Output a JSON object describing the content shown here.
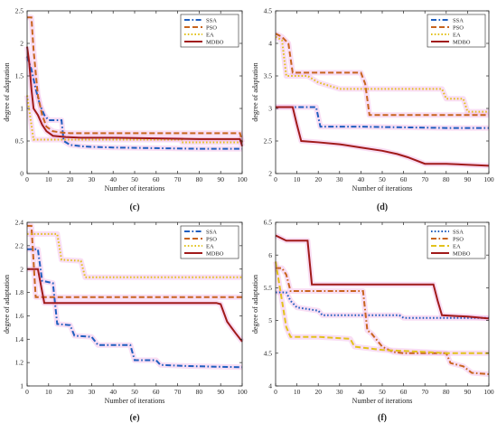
{
  "chart_data": [
    {
      "type": "line",
      "panel_label": "(c)",
      "xlabel": "Number of iterations",
      "ylabel": "degree of adaptation",
      "xlim": [
        0,
        100
      ],
      "ylim": [
        0,
        2.5
      ],
      "xticks": [
        0,
        10,
        20,
        30,
        40,
        50,
        60,
        70,
        80,
        90,
        100
      ],
      "yticks": [
        0,
        0.5,
        1,
        1.5,
        2,
        2.5
      ],
      "legend_position": "top-right",
      "series": [
        {
          "name": "SSA",
          "color": "#1f5fbf",
          "dash": "dashdot",
          "points": [
            [
              0,
              1.8
            ],
            [
              2,
              1.6
            ],
            [
              4,
              1.3
            ],
            [
              6,
              1.05
            ],
            [
              8,
              0.9
            ],
            [
              10,
              0.82
            ],
            [
              16,
              0.82
            ],
            [
              17,
              0.5
            ],
            [
              20,
              0.44
            ],
            [
              25,
              0.42
            ],
            [
              30,
              0.41
            ],
            [
              40,
              0.4
            ],
            [
              60,
              0.39
            ],
            [
              80,
              0.38
            ],
            [
              100,
              0.38
            ]
          ]
        },
        {
          "name": "PSO",
          "color": "#c8641e",
          "dash": "dash",
          "points": [
            [
              0,
              2.4
            ],
            [
              2,
              2.4
            ],
            [
              3,
              1.9
            ],
            [
              5,
              1.2
            ],
            [
              7,
              0.9
            ],
            [
              9,
              0.72
            ],
            [
              12,
              0.65
            ],
            [
              16,
              0.63
            ],
            [
              20,
              0.62
            ],
            [
              40,
              0.62
            ],
            [
              60,
              0.62
            ],
            [
              80,
              0.62
            ],
            [
              99,
              0.62
            ],
            [
              100,
              0.48
            ]
          ]
        },
        {
          "name": "EA",
          "color": "#e2c21c",
          "dash": "dot",
          "points": [
            [
              0,
              1.2
            ],
            [
              3,
              0.52
            ],
            [
              5,
              0.52
            ],
            [
              50,
              0.52
            ],
            [
              72,
              0.52
            ],
            [
              72,
              0.48
            ],
            [
              100,
              0.48
            ]
          ]
        },
        {
          "name": "MDBO",
          "color": "#a11a1a",
          "dash": "solid",
          "points": [
            [
              0,
              1.95
            ],
            [
              1,
              1.7
            ],
            [
              2,
              1.3
            ],
            [
              3,
              1.0
            ],
            [
              5,
              0.9
            ],
            [
              7,
              0.75
            ],
            [
              9,
              0.65
            ],
            [
              12,
              0.58
            ],
            [
              18,
              0.56
            ],
            [
              25,
              0.55
            ],
            [
              40,
              0.55
            ],
            [
              60,
              0.54
            ],
            [
              80,
              0.53
            ],
            [
              99,
              0.53
            ],
            [
              100,
              0.42
            ]
          ]
        }
      ]
    },
    {
      "type": "line",
      "panel_label": "(d)",
      "xlabel": "Number of iterations",
      "ylabel": "degree of adaptation",
      "xlim": [
        0,
        100
      ],
      "ylim": [
        2,
        4.5
      ],
      "xticks": [
        0,
        10,
        20,
        30,
        40,
        50,
        60,
        70,
        80,
        90,
        100
      ],
      "yticks": [
        2,
        2.5,
        3,
        3.5,
        4,
        4.5
      ],
      "legend_position": "top-right",
      "series": [
        {
          "name": "SSA",
          "color": "#1f5fbf",
          "dash": "dashdot",
          "points": [
            [
              0,
              3.02
            ],
            [
              19,
              3.02
            ],
            [
              21,
              2.72
            ],
            [
              40,
              2.72
            ],
            [
              60,
              2.71
            ],
            [
              80,
              2.7
            ],
            [
              100,
              2.7
            ]
          ]
        },
        {
          "name": "PSO",
          "color": "#c8641e",
          "dash": "dash",
          "points": [
            [
              0,
              4.15
            ],
            [
              3,
              4.1
            ],
            [
              6,
              4.0
            ],
            [
              8,
              3.55
            ],
            [
              20,
              3.55
            ],
            [
              40,
              3.55
            ],
            [
              42,
              3.38
            ],
            [
              44,
              2.9
            ],
            [
              60,
              2.9
            ],
            [
              80,
              2.9
            ],
            [
              100,
              2.9
            ]
          ]
        },
        {
          "name": "EA",
          "color": "#e2c21c",
          "dash": "dot",
          "points": [
            [
              0,
              4.1
            ],
            [
              3,
              4.05
            ],
            [
              5,
              3.5
            ],
            [
              15,
              3.5
            ],
            [
              20,
              3.4
            ],
            [
              30,
              3.3
            ],
            [
              78,
              3.3
            ],
            [
              80,
              3.15
            ],
            [
              88,
              3.15
            ],
            [
              90,
              2.95
            ],
            [
              100,
              2.95
            ]
          ]
        },
        {
          "name": "MDBO",
          "color": "#a11a1a",
          "dash": "solid",
          "points": [
            [
              0,
              3.02
            ],
            [
              8,
              3.02
            ],
            [
              10,
              2.75
            ],
            [
              12,
              2.5
            ],
            [
              20,
              2.48
            ],
            [
              30,
              2.45
            ],
            [
              40,
              2.4
            ],
            [
              50,
              2.35
            ],
            [
              57,
              2.3
            ],
            [
              62,
              2.25
            ],
            [
              70,
              2.15
            ],
            [
              80,
              2.15
            ],
            [
              100,
              2.12
            ]
          ]
        }
      ]
    },
    {
      "type": "line",
      "panel_label": "(e)",
      "xlabel": "Number of iterations",
      "ylabel": "degree of adaptation",
      "xlim": [
        0,
        100
      ],
      "ylim": [
        1,
        2.4
      ],
      "xticks": [
        0,
        10,
        20,
        30,
        40,
        50,
        60,
        70,
        80,
        90,
        100
      ],
      "yticks": [
        1,
        1.2,
        1.4,
        1.6,
        1.8,
        2,
        2.2,
        2.4
      ],
      "legend_position": "top-right",
      "series": [
        {
          "name": "SSA",
          "color": "#1f5fbf",
          "dash": "dashdot",
          "points": [
            [
              0,
              2.17
            ],
            [
              5,
              2.17
            ],
            [
              7,
              1.9
            ],
            [
              12,
              1.88
            ],
            [
              14,
              1.53
            ],
            [
              20,
              1.52
            ],
            [
              22,
              1.43
            ],
            [
              30,
              1.42
            ],
            [
              33,
              1.35
            ],
            [
              48,
              1.35
            ],
            [
              50,
              1.22
            ],
            [
              60,
              1.22
            ],
            [
              62,
              1.18
            ],
            [
              75,
              1.17
            ],
            [
              100,
              1.16
            ]
          ]
        },
        {
          "name": "PSO",
          "color": "#c8641e",
          "dash": "dash",
          "points": [
            [
              0,
              2.37
            ],
            [
              2,
              2.37
            ],
            [
              4,
              1.76
            ],
            [
              40,
              1.76
            ],
            [
              70,
              1.76
            ],
            [
              100,
              1.76
            ]
          ]
        },
        {
          "name": "EA",
          "color": "#e2c21c",
          "dash": "dot",
          "points": [
            [
              0,
              2.3
            ],
            [
              14,
              2.3
            ],
            [
              16,
              2.08
            ],
            [
              25,
              2.07
            ],
            [
              27,
              1.93
            ],
            [
              60,
              1.93
            ],
            [
              100,
              1.93
            ]
          ]
        },
        {
          "name": "MDBO",
          "color": "#a11a1a",
          "dash": "solid",
          "points": [
            [
              0,
              2.0
            ],
            [
              5,
              2.0
            ],
            [
              8,
              1.71
            ],
            [
              40,
              1.71
            ],
            [
              88,
              1.71
            ],
            [
              90,
              1.7
            ],
            [
              93,
              1.55
            ],
            [
              95,
              1.5
            ],
            [
              97,
              1.45
            ],
            [
              100,
              1.38
            ]
          ]
        }
      ]
    },
    {
      "type": "line",
      "panel_label": "(f)",
      "xlabel": "Number of iterations",
      "ylabel": "degree of adaptation",
      "xlim": [
        0,
        100
      ],
      "ylim": [
        4,
        6.5
      ],
      "xticks": [
        0,
        10,
        20,
        30,
        40,
        50,
        60,
        70,
        80,
        90,
        100
      ],
      "yticks": [
        4,
        4.5,
        5,
        5.5,
        6,
        6.5
      ],
      "legend_position": "top-right",
      "series": [
        {
          "name": "SSA",
          "color": "#1f5fbf",
          "dash": "dot",
          "points": [
            [
              0,
              5.43
            ],
            [
              5,
              5.43
            ],
            [
              7,
              5.3
            ],
            [
              10,
              5.2
            ],
            [
              20,
              5.15
            ],
            [
              22,
              5.08
            ],
            [
              40,
              5.08
            ],
            [
              58,
              5.08
            ],
            [
              60,
              5.04
            ],
            [
              100,
              5.04
            ]
          ]
        },
        {
          "name": "PSO",
          "color": "#c8641e",
          "dash": "dashdot",
          "points": [
            [
              0,
              5.8
            ],
            [
              3,
              5.8
            ],
            [
              5,
              5.7
            ],
            [
              7,
              5.45
            ],
            [
              20,
              5.45
            ],
            [
              41,
              5.45
            ],
            [
              43,
              4.85
            ],
            [
              45,
              4.8
            ],
            [
              50,
              4.6
            ],
            [
              55,
              4.52
            ],
            [
              60,
              4.5
            ],
            [
              80,
              4.5
            ],
            [
              82,
              4.35
            ],
            [
              88,
              4.3
            ],
            [
              92,
              4.2
            ],
            [
              100,
              4.18
            ]
          ]
        },
        {
          "name": "EA",
          "color": "#e2c21c",
          "dash": "dash",
          "points": [
            [
              0,
              5.9
            ],
            [
              3,
              5.3
            ],
            [
              5,
              4.9
            ],
            [
              7,
              4.75
            ],
            [
              20,
              4.75
            ],
            [
              35,
              4.72
            ],
            [
              37,
              4.6
            ],
            [
              50,
              4.55
            ],
            [
              70,
              4.52
            ],
            [
              80,
              4.5
            ],
            [
              100,
              4.5
            ]
          ]
        },
        {
          "name": "MDBO",
          "color": "#a11a1a",
          "dash": "solid",
          "points": [
            [
              0,
              6.3
            ],
            [
              5,
              6.22
            ],
            [
              15,
              6.22
            ],
            [
              17,
              5.55
            ],
            [
              40,
              5.55
            ],
            [
              60,
              5.55
            ],
            [
              74,
              5.55
            ],
            [
              76,
              5.3
            ],
            [
              78,
              5.08
            ],
            [
              90,
              5.06
            ],
            [
              100,
              5.03
            ]
          ]
        }
      ]
    }
  ]
}
